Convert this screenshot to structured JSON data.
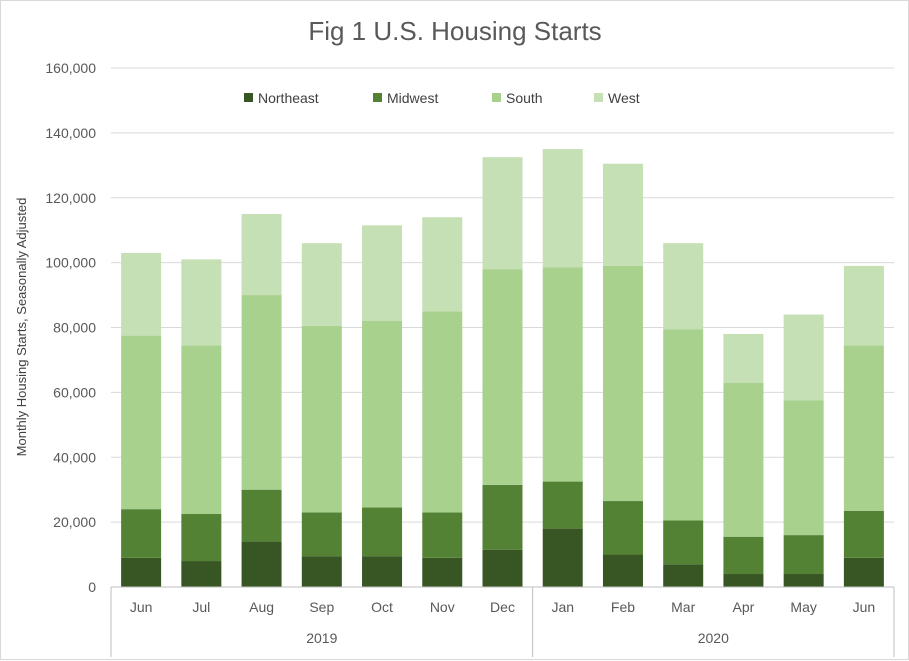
{
  "chart_data": {
    "type": "bar",
    "stacked": true,
    "title": "Fig 1 U.S. Housing Starts",
    "xlabel": "",
    "ylabel": "Monthly Housing Starts, Seasonally Adjusted",
    "ylim": [
      0,
      160000
    ],
    "yticks": [
      0,
      20000,
      40000,
      60000,
      80000,
      100000,
      120000,
      140000,
      160000
    ],
    "ytick_labels": [
      "0",
      "20,000",
      "40,000",
      "60,000",
      "80,000",
      "100,000",
      "120,000",
      "140,000",
      "160,000"
    ],
    "grid": true,
    "legend_position": "top",
    "categories": [
      "Jun",
      "Jul",
      "Aug",
      "Sep",
      "Oct",
      "Nov",
      "Dec",
      "Jan",
      "Feb",
      "Mar",
      "Apr",
      "May",
      "Jun"
    ],
    "groups": [
      {
        "label": "2019",
        "count": 7
      },
      {
        "label": "2020",
        "count": 6
      }
    ],
    "series": [
      {
        "name": "Northeast",
        "color": "#375623",
        "values": [
          9000,
          8000,
          14000,
          9500,
          9500,
          9000,
          11500,
          18000,
          10000,
          7000,
          4000,
          4000,
          9000
        ]
      },
      {
        "name": "Midwest",
        "color": "#548235",
        "values": [
          15000,
          14500,
          16000,
          13500,
          15000,
          14000,
          20000,
          14500,
          16500,
          13500,
          11500,
          12000,
          14500
        ]
      },
      {
        "name": "South",
        "color": "#a9d18e",
        "values": [
          53500,
          52000,
          60000,
          57500,
          57500,
          62000,
          66500,
          66000,
          72500,
          59000,
          47500,
          41500,
          51000
        ]
      },
      {
        "name": "West",
        "color": "#c5e0b4",
        "values": [
          25500,
          26500,
          25000,
          25500,
          29500,
          29000,
          34500,
          36500,
          31500,
          26500,
          15000,
          26500,
          24500
        ]
      }
    ]
  }
}
